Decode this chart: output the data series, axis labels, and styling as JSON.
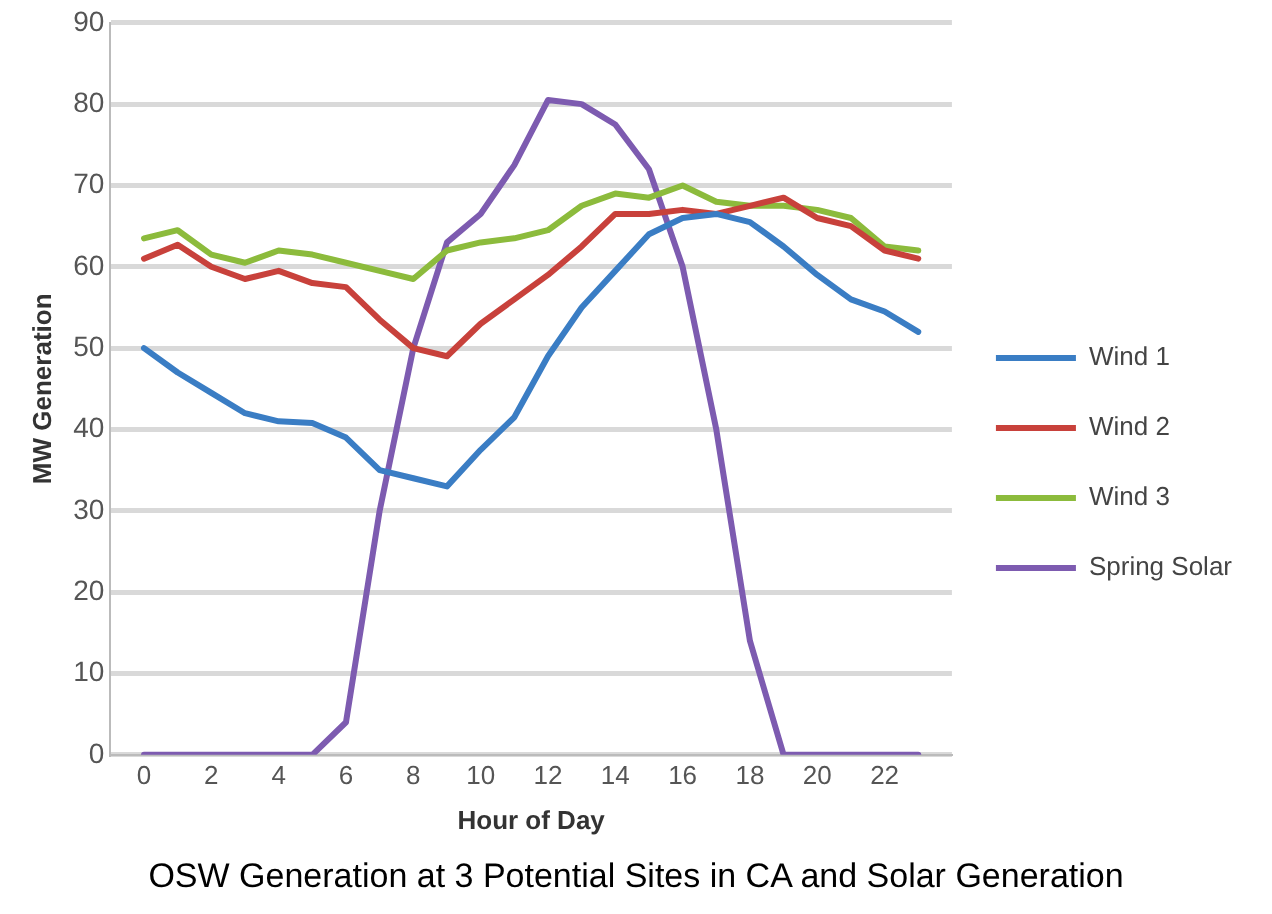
{
  "chart_data": {
    "type": "line",
    "title": "OSW Generation at 3 Potential Sites in CA and Solar Generation",
    "xlabel": "Hour of Day",
    "ylabel": "MW Generation",
    "x": [
      0,
      1,
      2,
      3,
      4,
      5,
      6,
      7,
      8,
      9,
      10,
      11,
      12,
      13,
      14,
      15,
      16,
      17,
      18,
      19,
      20,
      21,
      22,
      23
    ],
    "series": [
      {
        "name": "Wind 1",
        "color": "#3a7dc4",
        "values": [
          50,
          47,
          44.5,
          42,
          41,
          40.8,
          39,
          35,
          34,
          33,
          37.5,
          41.5,
          49,
          55,
          59.5,
          64,
          66,
          66.5,
          65.5,
          62.5,
          59,
          56,
          54.5,
          52
        ]
      },
      {
        "name": "Wind 2",
        "color": "#c8413b",
        "values": [
          61,
          62.7,
          60,
          58.5,
          59.5,
          58,
          57.5,
          53.5,
          50,
          49,
          53,
          56,
          59,
          62.5,
          66.5,
          66.5,
          67,
          66.5,
          67.5,
          68.5,
          66,
          65,
          62,
          61
        ]
      },
      {
        "name": "Wind 3",
        "color": "#8cbb3c",
        "values": [
          63.5,
          64.5,
          61.5,
          60.5,
          62,
          61.5,
          60.5,
          59.5,
          58.5,
          62,
          63,
          63.5,
          64.5,
          67.5,
          69,
          68.5,
          70,
          68,
          67.5,
          67.5,
          67,
          66,
          62.5,
          62
        ]
      },
      {
        "name": "Spring Solar",
        "color": "#7d5bb0",
        "values": [
          0,
          0,
          0,
          0,
          0,
          0,
          4,
          30,
          50,
          63,
          66.5,
          72.5,
          80.5,
          80,
          77.5,
          72,
          60,
          40,
          14,
          0,
          0,
          0,
          0,
          0
        ]
      }
    ],
    "xlim": [
      -1,
      24
    ],
    "xticks": [
      0,
      2,
      4,
      6,
      8,
      10,
      12,
      14,
      16,
      18,
      20,
      22
    ],
    "ylim": [
      0,
      90
    ],
    "yticks": [
      0,
      10,
      20,
      30,
      40,
      50,
      60,
      70,
      80,
      90
    ],
    "grid": "y",
    "legend": "right",
    "marker": "none",
    "line_style": "solid"
  }
}
